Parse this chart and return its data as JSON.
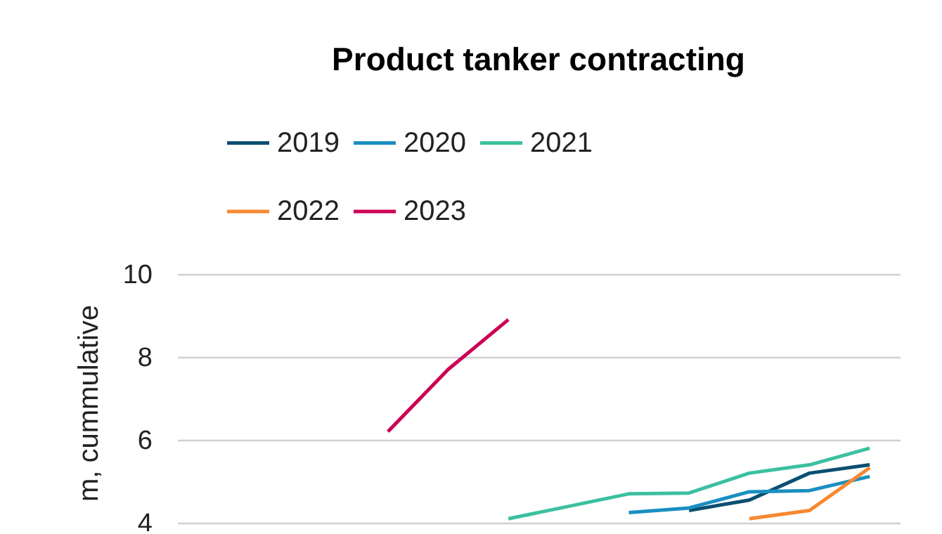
{
  "chart_data": {
    "type": "line",
    "title": "Product tanker contracting",
    "ylabel": "m, cummulative",
    "categories": [
      null,
      null,
      null,
      null,
      null,
      null,
      null,
      null,
      null,
      null,
      null,
      null
    ],
    "series": [
      {
        "name": "2019",
        "color": "#0b4f72",
        "values": [
          null,
          null,
          null,
          null,
          null,
          null,
          null,
          null,
          4.3,
          4.55,
          5.2,
          5.4
        ]
      },
      {
        "name": "2020",
        "color": "#1a8fc2",
        "values": [
          null,
          null,
          null,
          null,
          null,
          null,
          null,
          4.25,
          4.36,
          4.75,
          4.78,
          5.12
        ]
      },
      {
        "name": "2021",
        "color": "#3cc0a0",
        "values": [
          null,
          null,
          null,
          null,
          null,
          4.1,
          4.4,
          4.7,
          4.72,
          5.2,
          5.4,
          5.8
        ]
      },
      {
        "name": "2022",
        "color": "#f7882f",
        "values": [
          null,
          null,
          null,
          null,
          null,
          null,
          null,
          null,
          null,
          4.1,
          4.3,
          5.33
        ]
      },
      {
        "name": "2023",
        "color": "#cc0055",
        "values": [
          null,
          null,
          null,
          6.2,
          7.7,
          8.9,
          null,
          null,
          null,
          null,
          null,
          null
        ]
      }
    ],
    "ylim": [
      3.8,
      10
    ],
    "yticks": [
      4,
      6,
      8,
      10
    ],
    "grid": "y",
    "legend": "top",
    "tick_labels": "y"
  }
}
